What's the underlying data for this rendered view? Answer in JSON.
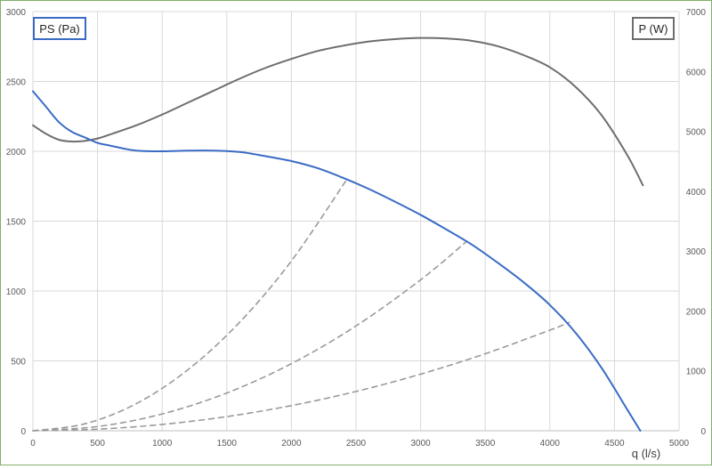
{
  "chart_data": {
    "type": "line",
    "xlabel": "q (l/s)",
    "ylabel_left": "PS (Pa)",
    "ylabel_right": "P (W)",
    "xlim": [
      0,
      5000
    ],
    "ylim_left": [
      0,
      3000
    ],
    "ylim_right": [
      0,
      7000
    ],
    "x_ticks": [
      0,
      500,
      1000,
      1500,
      2000,
      2500,
      3000,
      3500,
      4000,
      4500,
      5000
    ],
    "y_left_ticks": [
      0,
      500,
      1000,
      1500,
      2000,
      2500,
      3000
    ],
    "y_right_ticks": [
      0,
      1000,
      2000,
      3000,
      4000,
      5000,
      6000,
      7000
    ],
    "grid": true,
    "series": [
      {
        "name": "PS (Pa)",
        "axis": "left",
        "color": "#3a6bc4",
        "style": "solid",
        "x": [
          0,
          100,
          200,
          300,
          400,
          500,
          600,
          700,
          800,
          1000,
          1200,
          1400,
          1600,
          1800,
          2000,
          2200,
          2400,
          2600,
          2800,
          3000,
          3200,
          3400,
          3600,
          3800,
          4000,
          4200,
          4400,
          4600,
          4700
        ],
        "y": [
          2430,
          2320,
          2210,
          2140,
          2100,
          2060,
          2040,
          2020,
          2005,
          2000,
          2005,
          2005,
          1995,
          1965,
          1930,
          1880,
          1810,
          1730,
          1640,
          1545,
          1440,
          1330,
          1200,
          1060,
          900,
          700,
          450,
          150,
          0
        ]
      },
      {
        "name": "P (W)",
        "axis": "right",
        "color": "#6e6e6e",
        "style": "solid",
        "x": [
          0,
          100,
          200,
          300,
          400,
          500,
          600,
          800,
          1000,
          1200,
          1400,
          1600,
          1800,
          2000,
          2200,
          2400,
          2600,
          2800,
          3000,
          3200,
          3400,
          3600,
          3800,
          4000,
          4200,
          4400,
          4600,
          4720
        ],
        "y": [
          5100,
          4960,
          4860,
          4830,
          4840,
          4880,
          4950,
          5100,
          5280,
          5480,
          5680,
          5880,
          6060,
          6210,
          6340,
          6430,
          6500,
          6540,
          6560,
          6550,
          6510,
          6420,
          6270,
          6070,
          5740,
          5270,
          4600,
          4100
        ]
      },
      {
        "name": "",
        "axis": "left",
        "color": "#9a9a9a",
        "style": "dashed",
        "x": [
          0,
          400,
          800,
          1200,
          1600,
          2000,
          2430
        ],
        "y": [
          0,
          49,
          194,
          437,
          777,
          1215,
          1800
        ]
      },
      {
        "name": "",
        "axis": "left",
        "color": "#9a9a9a",
        "style": "dashed",
        "x": [
          0,
          500,
          1000,
          1500,
          2000,
          2500,
          3000,
          3350
        ],
        "y": [
          0,
          30,
          120,
          270,
          480,
          750,
          1080,
          1350
        ]
      },
      {
        "name": "",
        "axis": "left",
        "color": "#9a9a9a",
        "style": "dashed",
        "x": [
          0,
          500,
          1000,
          1500,
          2000,
          2500,
          3000,
          3500,
          4000,
          4150
        ],
        "y": [
          0,
          11,
          45,
          101,
          180,
          281,
          405,
          551,
          720,
          775
        ]
      }
    ]
  }
}
